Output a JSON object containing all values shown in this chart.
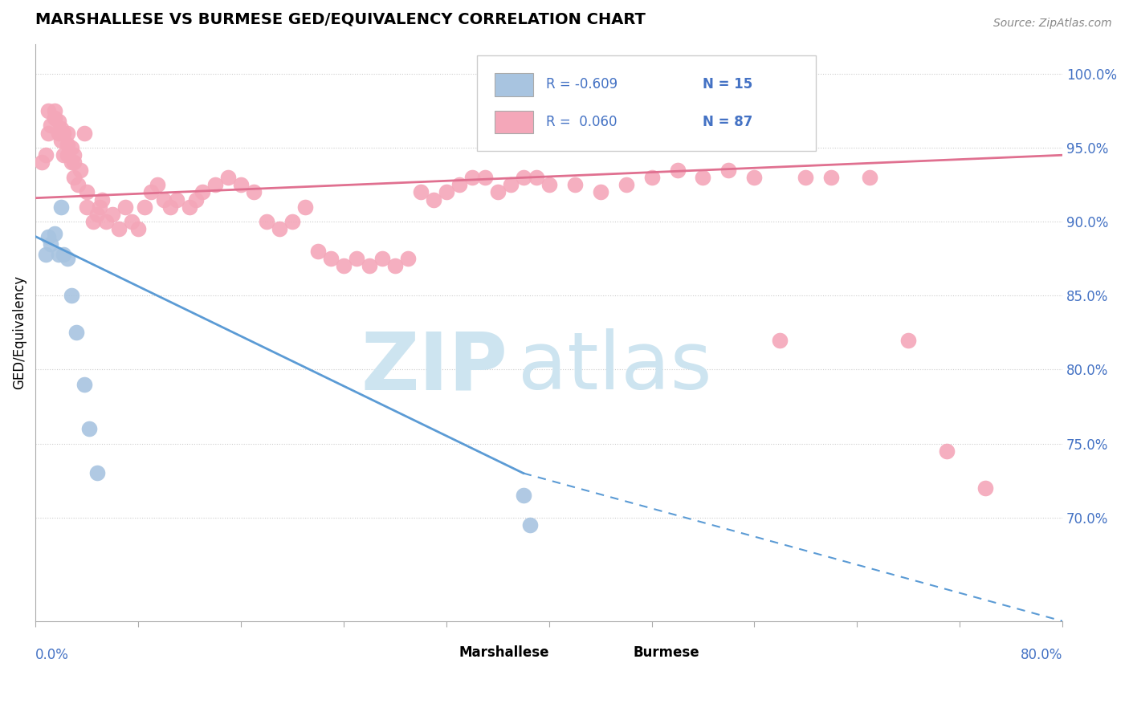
{
  "title": "MARSHALLESE VS BURMESE GED/EQUIVALENCY CORRELATION CHART",
  "source": "Source: ZipAtlas.com",
  "ylabel": "GED/Equivalency",
  "ytick_vals": [
    0.7,
    0.75,
    0.8,
    0.85,
    0.9,
    0.95,
    1.0
  ],
  "xlim": [
    0.0,
    0.8
  ],
  "ylim": [
    0.63,
    1.02
  ],
  "legend_R_marshallese": "-0.609",
  "legend_N_marshallese": "15",
  "legend_R_burmese": "0.060",
  "legend_N_burmese": "87",
  "marshallese_color": "#a8c4e0",
  "burmese_color": "#f4a7b9",
  "trend_marshallese_color": "#5b9bd5",
  "trend_burmese_color": "#e07090",
  "watermark_zip": "ZIP",
  "watermark_atlas": "atlas",
  "watermark_color": "#cde4f0",
  "grid_color": "#cccccc",
  "background_color": "#ffffff",
  "marshallese_x": [
    0.008,
    0.01,
    0.012,
    0.015,
    0.018,
    0.02,
    0.022,
    0.025,
    0.028,
    0.032,
    0.038,
    0.042,
    0.048,
    0.38,
    0.385
  ],
  "marshallese_y": [
    0.878,
    0.89,
    0.885,
    0.892,
    0.878,
    0.91,
    0.878,
    0.875,
    0.85,
    0.825,
    0.79,
    0.76,
    0.73,
    0.715,
    0.695
  ],
  "burmese_x": [
    0.005,
    0.008,
    0.01,
    0.01,
    0.012,
    0.015,
    0.015,
    0.018,
    0.018,
    0.02,
    0.02,
    0.022,
    0.022,
    0.025,
    0.025,
    0.025,
    0.028,
    0.028,
    0.03,
    0.03,
    0.03,
    0.033,
    0.035,
    0.038,
    0.04,
    0.04,
    0.045,
    0.048,
    0.05,
    0.052,
    0.055,
    0.06,
    0.065,
    0.07,
    0.075,
    0.08,
    0.085,
    0.09,
    0.095,
    0.1,
    0.105,
    0.11,
    0.12,
    0.125,
    0.13,
    0.14,
    0.15,
    0.16,
    0.17,
    0.18,
    0.19,
    0.2,
    0.21,
    0.22,
    0.23,
    0.24,
    0.25,
    0.26,
    0.27,
    0.28,
    0.29,
    0.3,
    0.31,
    0.32,
    0.33,
    0.34,
    0.35,
    0.36,
    0.37,
    0.38,
    0.39,
    0.4,
    0.42,
    0.44,
    0.46,
    0.48,
    0.5,
    0.52,
    0.54,
    0.56,
    0.58,
    0.6,
    0.62,
    0.65,
    0.68,
    0.71,
    0.74
  ],
  "burmese_y": [
    0.94,
    0.945,
    0.96,
    0.975,
    0.965,
    0.97,
    0.975,
    0.96,
    0.968,
    0.955,
    0.963,
    0.945,
    0.96,
    0.945,
    0.952,
    0.96,
    0.94,
    0.95,
    0.93,
    0.94,
    0.945,
    0.925,
    0.935,
    0.96,
    0.91,
    0.92,
    0.9,
    0.905,
    0.91,
    0.915,
    0.9,
    0.905,
    0.895,
    0.91,
    0.9,
    0.895,
    0.91,
    0.92,
    0.925,
    0.915,
    0.91,
    0.915,
    0.91,
    0.915,
    0.92,
    0.925,
    0.93,
    0.925,
    0.92,
    0.9,
    0.895,
    0.9,
    0.91,
    0.88,
    0.875,
    0.87,
    0.875,
    0.87,
    0.875,
    0.87,
    0.875,
    0.92,
    0.915,
    0.92,
    0.925,
    0.93,
    0.93,
    0.92,
    0.925,
    0.93,
    0.93,
    0.925,
    0.925,
    0.92,
    0.925,
    0.93,
    0.935,
    0.93,
    0.935,
    0.93,
    0.82,
    0.93,
    0.93,
    0.93,
    0.82,
    0.745,
    0.72
  ]
}
